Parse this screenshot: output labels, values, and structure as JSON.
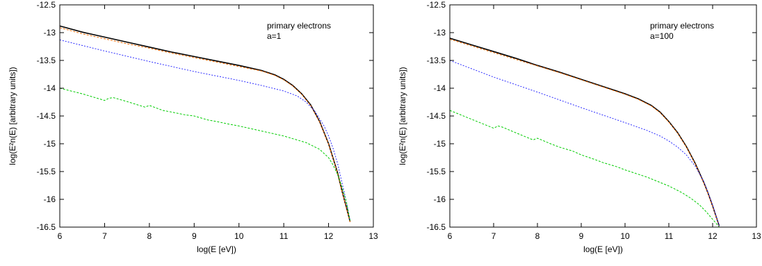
{
  "chart_data": [
    {
      "type": "line",
      "xlabel": "log(E [eV])",
      "ylabel": "log(E²n(E) [arbitrary units])",
      "xlim": [
        6,
        13
      ],
      "ylim": [
        -16.5,
        -12.5
      ],
      "xticks": [
        "6",
        "7",
        "8",
        "9",
        "10",
        "11",
        "12",
        "13"
      ],
      "yticks": [
        "-12.5",
        "-13",
        "-13.5",
        "-14",
        "-14.5",
        "-15",
        "-15.5",
        "-16",
        "-16.5"
      ],
      "annotation": [
        "primary electrons",
        "a=1"
      ],
      "grid": false,
      "series": [
        {
          "color": "#000000",
          "dash": "",
          "width": 1.6,
          "x": [
            6.0,
            6.5,
            7.0,
            7.5,
            8.0,
            8.5,
            9.0,
            9.5,
            10.0,
            10.5,
            10.8,
            11.0,
            11.2,
            11.4,
            11.6,
            11.8,
            12.0,
            12.2,
            12.3,
            12.4,
            12.48
          ],
          "y": [
            -12.88,
            -12.99,
            -13.08,
            -13.17,
            -13.26,
            -13.35,
            -13.43,
            -13.51,
            -13.59,
            -13.68,
            -13.76,
            -13.84,
            -13.95,
            -14.1,
            -14.3,
            -14.6,
            -15.0,
            -15.52,
            -15.85,
            -16.15,
            -16.4
          ]
        },
        {
          "color": "#ff6a00",
          "dash": "3,2",
          "width": 1.0,
          "x": [
            6.0,
            6.5,
            7.0,
            7.5,
            8.0,
            8.5,
            9.0,
            9.5,
            10.0,
            10.5,
            10.8,
            11.0,
            11.2,
            11.4,
            11.6,
            11.8,
            12.0,
            12.2,
            12.3,
            12.4,
            12.48
          ],
          "y": [
            -12.91,
            -13.02,
            -13.11,
            -13.2,
            -13.28,
            -13.37,
            -13.45,
            -13.53,
            -13.61,
            -13.69,
            -13.77,
            -13.85,
            -13.96,
            -14.11,
            -14.31,
            -14.61,
            -15.01,
            -15.53,
            -15.86,
            -16.16,
            -16.41
          ]
        },
        {
          "color": "#2b2bff",
          "dash": "2,2",
          "width": 1.0,
          "x": [
            6.0,
            7.0,
            8.0,
            9.0,
            10.0,
            10.5,
            11.0,
            11.3,
            11.5,
            11.7,
            11.9,
            12.0,
            12.1,
            12.2,
            12.3,
            12.4,
            12.48
          ],
          "y": [
            -13.13,
            -13.33,
            -13.52,
            -13.7,
            -13.86,
            -13.95,
            -14.05,
            -14.14,
            -14.25,
            -14.42,
            -14.68,
            -14.86,
            -15.08,
            -15.35,
            -15.7,
            -16.05,
            -16.38
          ]
        },
        {
          "color": "#00cc00",
          "dash": "3,2",
          "width": 1.0,
          "x": [
            6.0,
            6.5,
            7.0,
            7.1,
            7.2,
            7.5,
            7.9,
            8.0,
            8.3,
            8.5,
            8.8,
            9.0,
            9.3,
            9.5,
            9.8,
            10.0,
            10.5,
            11.0,
            11.5,
            11.8,
            12.0,
            12.1,
            12.2,
            12.3,
            12.4,
            12.48
          ],
          "y": [
            -14.0,
            -14.1,
            -14.22,
            -14.18,
            -14.17,
            -14.24,
            -14.34,
            -14.31,
            -14.4,
            -14.43,
            -14.48,
            -14.5,
            -14.57,
            -14.6,
            -14.65,
            -14.68,
            -14.77,
            -14.86,
            -14.98,
            -15.1,
            -15.25,
            -15.38,
            -15.55,
            -15.78,
            -16.05,
            -16.38
          ]
        }
      ]
    },
    {
      "type": "line",
      "xlabel": "log(E [eV])",
      "ylabel": "log(E²n(E) [arbitrary units])",
      "xlim": [
        6,
        13
      ],
      "ylim": [
        -16.5,
        -12.5
      ],
      "xticks": [
        "6",
        "7",
        "8",
        "9",
        "10",
        "11",
        "12",
        "13"
      ],
      "yticks": [
        "-12.5",
        "-13",
        "-13.5",
        "-14",
        "-14.5",
        "-15",
        "-15.5",
        "-16",
        "-16.5"
      ],
      "annotation": [
        "primary electrons",
        "a=100"
      ],
      "grid": false,
      "series": [
        {
          "color": "#000000",
          "dash": "",
          "width": 1.6,
          "x": [
            6.0,
            6.5,
            7.0,
            7.5,
            8.0,
            8.5,
            9.0,
            9.5,
            10.0,
            10.3,
            10.6,
            10.8,
            11.0,
            11.2,
            11.4,
            11.6,
            11.8,
            11.9,
            12.0,
            12.1,
            12.15
          ],
          "y": [
            -13.1,
            -13.22,
            -13.34,
            -13.46,
            -13.59,
            -13.71,
            -13.84,
            -13.97,
            -14.1,
            -14.19,
            -14.31,
            -14.43,
            -14.6,
            -14.8,
            -15.05,
            -15.35,
            -15.7,
            -15.9,
            -16.12,
            -16.36,
            -16.48
          ]
        },
        {
          "color": "#ff6a00",
          "dash": "3,2",
          "width": 1.0,
          "x": [
            6.0,
            6.5,
            7.0,
            7.5,
            8.0,
            8.5,
            9.0,
            9.5,
            10.0,
            10.3,
            10.6,
            10.8,
            11.0,
            11.2,
            11.4,
            11.6,
            11.8,
            11.9,
            12.0,
            12.1,
            12.15
          ],
          "y": [
            -13.12,
            -13.24,
            -13.36,
            -13.48,
            -13.6,
            -13.72,
            -13.85,
            -13.98,
            -14.11,
            -14.2,
            -14.32,
            -14.44,
            -14.61,
            -14.81,
            -15.06,
            -15.36,
            -15.71,
            -15.91,
            -16.13,
            -16.37,
            -16.49
          ]
        },
        {
          "color": "#2b2bff",
          "dash": "2,2",
          "width": 1.0,
          "x": [
            6.0,
            7.0,
            8.0,
            9.0,
            10.0,
            10.5,
            10.8,
            11.0,
            11.2,
            11.4,
            11.6,
            11.8,
            11.9,
            12.0,
            12.1,
            12.15
          ],
          "y": [
            -13.5,
            -13.8,
            -14.07,
            -14.35,
            -14.62,
            -14.76,
            -14.86,
            -14.95,
            -15.06,
            -15.2,
            -15.4,
            -15.68,
            -15.88,
            -16.1,
            -16.35,
            -16.48
          ]
        },
        {
          "color": "#00cc00",
          "dash": "3,2",
          "width": 1.0,
          "x": [
            6.0,
            6.5,
            7.0,
            7.1,
            7.2,
            7.5,
            7.9,
            8.0,
            8.3,
            8.5,
            8.8,
            9.0,
            9.3,
            9.5,
            9.8,
            10.0,
            10.5,
            11.0,
            11.3,
            11.5,
            11.7,
            11.85,
            12.0,
            12.1,
            12.15
          ],
          "y": [
            -14.4,
            -14.56,
            -14.72,
            -14.68,
            -14.7,
            -14.8,
            -14.93,
            -14.9,
            -15.0,
            -15.06,
            -15.13,
            -15.2,
            -15.28,
            -15.34,
            -15.41,
            -15.47,
            -15.6,
            -15.76,
            -15.88,
            -15.98,
            -16.1,
            -16.22,
            -16.36,
            -16.45,
            -16.5
          ]
        }
      ]
    }
  ]
}
